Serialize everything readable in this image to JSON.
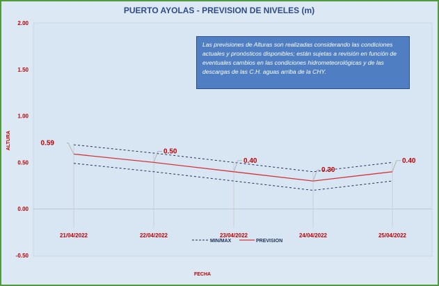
{
  "chart_data": {
    "type": "line",
    "title": "PUERTO AYOLAS - PREVISION DE NIVELES (m)",
    "xlabel": "FECHA",
    "ylabel": "ALTURA",
    "categories": [
      "21/04/2022",
      "22/04/2022",
      "23/04/2022",
      "24/04/2022",
      "25/04/2022"
    ],
    "ylim": [
      -0.5,
      2.0
    ],
    "yticks": [
      "2.00",
      "1.50",
      "1.00",
      "0.50",
      "0.00",
      "-0.50"
    ],
    "series": [
      {
        "name": "PREVISION",
        "values": [
          0.59,
          0.5,
          0.4,
          0.3,
          0.4
        ],
        "labels": [
          "0.59",
          "0.50",
          "0.40",
          "0.30",
          "0.40"
        ],
        "color": "#d0363a",
        "style": "solid"
      },
      {
        "name": "MIN/MAX",
        "values": [
          0.69,
          0.6,
          0.5,
          0.4,
          0.5
        ],
        "color": "#1f2f55",
        "style": "dashed"
      },
      {
        "name": "MIN/MAX",
        "values": [
          0.49,
          0.4,
          0.3,
          0.2,
          0.3
        ],
        "color": "#1f2f55",
        "style": "dashed"
      }
    ],
    "legend": {
      "position": "bottom",
      "items": [
        "MIN/MAX",
        "PREVISION"
      ]
    },
    "grid": false,
    "annotation": "Las previsiones de Alturas son realizadas considerando las condiciones actuales y pronósticos disponibles; están sujetas a revisión en función de eventuales cambios en las condiciones hidrometeorológicas y de las descargas de las C.H. aguas arriba de la CHY.",
    "colors": {
      "frame_border": "#4f9a3c",
      "background": "#dce9f5",
      "note_fill": "#4f7fc2",
      "title": "#2e4a8a",
      "text": "#c00000"
    }
  }
}
